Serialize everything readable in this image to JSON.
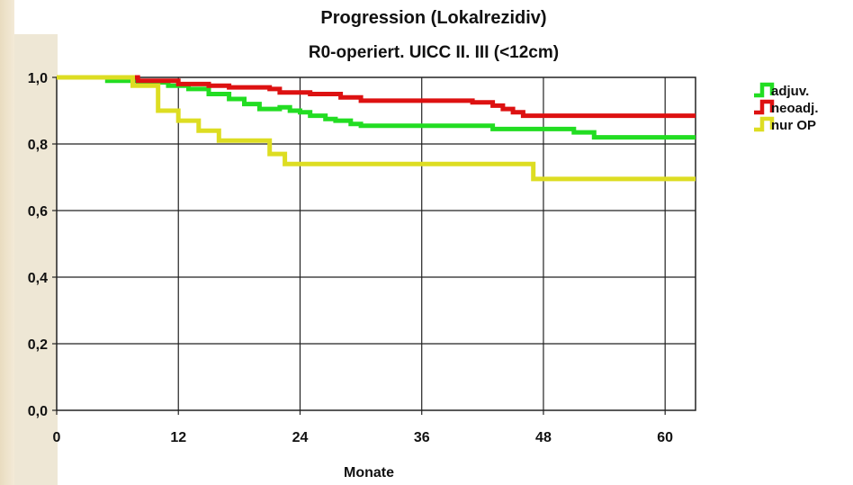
{
  "chart_data": {
    "type": "line",
    "title": "Progression (Lokalrezidiv)",
    "subtitle": "R0-operiert. UICC II. III (<12cm)",
    "xlabel": "Monate",
    "ylabel": "",
    "xlim": [
      0,
      63
    ],
    "ylim": [
      0,
      1
    ],
    "xticks": [
      0,
      12,
      24,
      36,
      48,
      60
    ],
    "xtick_labels": [
      "0",
      "12",
      "24",
      "36",
      "48",
      "60"
    ],
    "yticks": [
      0,
      0.2,
      0.4,
      0.6,
      0.8,
      1.0
    ],
    "ytick_labels": [
      "0,0",
      "0,2",
      "0,4",
      "0,6",
      "0,8",
      "1,0"
    ],
    "grid": true,
    "legend_position": "right",
    "step": true,
    "series": [
      {
        "name": "adjuv.",
        "color": "#22dd22",
        "points": [
          [
            0,
            1.0
          ],
          [
            5,
            0.99
          ],
          [
            8,
            0.985
          ],
          [
            11,
            0.975
          ],
          [
            13,
            0.965
          ],
          [
            15,
            0.95
          ],
          [
            17,
            0.935
          ],
          [
            18.5,
            0.92
          ],
          [
            20,
            0.905
          ],
          [
            22,
            0.91
          ],
          [
            23,
            0.9
          ],
          [
            24,
            0.895
          ],
          [
            25,
            0.885
          ],
          [
            26.5,
            0.875
          ],
          [
            27.5,
            0.87
          ],
          [
            29,
            0.86
          ],
          [
            30,
            0.855
          ],
          [
            37,
            0.855
          ],
          [
            43,
            0.845
          ],
          [
            51,
            0.835
          ],
          [
            53,
            0.82
          ],
          [
            63,
            0.82
          ]
        ]
      },
      {
        "name": "neoadj.",
        "color": "#dd1111",
        "points": [
          [
            0,
            1.0
          ],
          [
            8,
            0.99
          ],
          [
            12,
            0.98
          ],
          [
            15,
            0.975
          ],
          [
            17,
            0.97
          ],
          [
            21,
            0.965
          ],
          [
            22,
            0.955
          ],
          [
            25,
            0.95
          ],
          [
            28,
            0.94
          ],
          [
            30,
            0.93
          ],
          [
            40,
            0.93
          ],
          [
            41,
            0.925
          ],
          [
            43,
            0.915
          ],
          [
            44,
            0.905
          ],
          [
            45,
            0.895
          ],
          [
            46,
            0.885
          ],
          [
            63,
            0.885
          ]
        ]
      },
      {
        "name": "nur OP",
        "color": "#dddd22",
        "points": [
          [
            0,
            1.0
          ],
          [
            7.5,
            0.975
          ],
          [
            10,
            0.9
          ],
          [
            12,
            0.87
          ],
          [
            14,
            0.84
          ],
          [
            16,
            0.81
          ],
          [
            21,
            0.77
          ],
          [
            22.5,
            0.74
          ],
          [
            47,
            0.695
          ],
          [
            63,
            0.695
          ]
        ]
      }
    ]
  }
}
